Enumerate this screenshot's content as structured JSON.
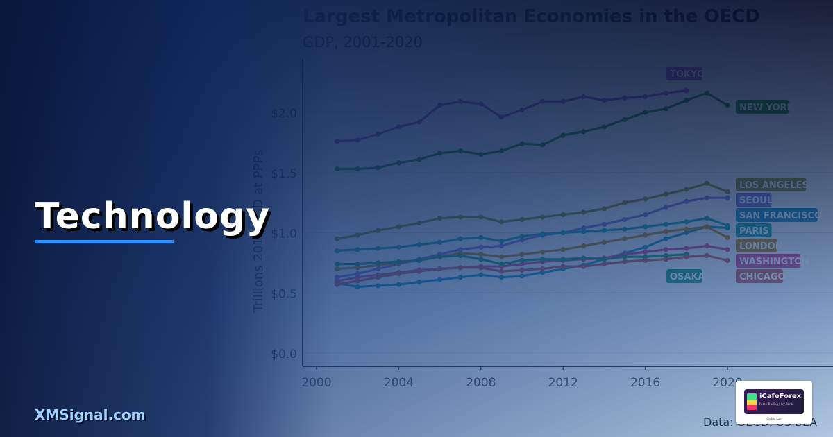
{
  "headline": "Technology",
  "brand": "XMSignal.com",
  "logo": {
    "name": "iCafeForex",
    "tagline": "Forex Trading | Ivy Bank",
    "sub": "Global Lab"
  },
  "colors": {
    "accent": "#2f8fff",
    "brand_text": "#9fd0ff"
  },
  "chart_data": {
    "type": "line",
    "title": "Largest Metropolitan Economies in the OECD",
    "subtitle": "GDP, 2001-2020",
    "ylabel": "Trillions 2015 USD at PPPs",
    "source": "Data: OECD, US BEA",
    "xlim": [
      2000,
      2021
    ],
    "ylim": [
      0,
      2.4
    ],
    "x_ticks": [
      2000,
      2004,
      2008,
      2012,
      2016,
      2020
    ],
    "x_tick_labels": [
      "2000",
      "2004",
      "2008",
      "2012",
      "2016",
      "2020"
    ],
    "y_ticks": [
      0,
      0.5,
      1.0,
      1.5,
      2.0
    ],
    "y_tick_labels": [
      "$0.0",
      "$0.5",
      "$1.0",
      "$1.5",
      "$2.0"
    ],
    "grid": true,
    "series": [
      {
        "name": "TOKYO",
        "color": "#a64ab5",
        "x": [
          2001,
          2002,
          2003,
          2004,
          2005,
          2006,
          2007,
          2008,
          2009,
          2010,
          2011,
          2012,
          2013,
          2014,
          2015,
          2016,
          2017,
          2018
        ],
        "values": [
          1.76,
          1.77,
          1.82,
          1.88,
          1.92,
          2.06,
          2.09,
          2.07,
          1.96,
          2.02,
          2.09,
          2.09,
          2.13,
          2.1,
          2.12,
          2.13,
          2.16,
          2.18
        ]
      },
      {
        "name": "NEW YORK",
        "color": "#1e8c1e",
        "x": [
          2001,
          2002,
          2003,
          2004,
          2005,
          2006,
          2007,
          2008,
          2009,
          2010,
          2011,
          2012,
          2013,
          2014,
          2015,
          2016,
          2017,
          2018,
          2019,
          2020
        ],
        "values": [
          1.53,
          1.53,
          1.54,
          1.58,
          1.61,
          1.66,
          1.68,
          1.65,
          1.68,
          1.74,
          1.73,
          1.81,
          1.84,
          1.88,
          1.94,
          2.0,
          2.03,
          2.1,
          2.16,
          2.06
        ]
      },
      {
        "name": "LOS ANGELES",
        "color": "#8a8a1e",
        "x": [
          2001,
          2002,
          2003,
          2004,
          2005,
          2006,
          2007,
          2008,
          2009,
          2010,
          2011,
          2012,
          2013,
          2014,
          2015,
          2016,
          2017,
          2018,
          2019,
          2020
        ],
        "values": [
          0.95,
          0.98,
          1.02,
          1.05,
          1.08,
          1.12,
          1.13,
          1.13,
          1.09,
          1.11,
          1.13,
          1.15,
          1.17,
          1.2,
          1.25,
          1.28,
          1.32,
          1.36,
          1.41,
          1.34
        ]
      },
      {
        "name": "SEOUL",
        "color": "#7d72d6",
        "x": [
          2001,
          2002,
          2003,
          2004,
          2005,
          2006,
          2007,
          2008,
          2009,
          2010,
          2011,
          2012,
          2013,
          2014,
          2015,
          2016,
          2017,
          2018,
          2019,
          2020
        ],
        "values": [
          0.63,
          0.66,
          0.7,
          0.74,
          0.78,
          0.82,
          0.86,
          0.88,
          0.89,
          0.94,
          0.98,
          1.0,
          1.04,
          1.07,
          1.11,
          1.15,
          1.21,
          1.26,
          1.29,
          1.29
        ]
      },
      {
        "name": "SAN FRANCISCO",
        "color": "#1b8fb8",
        "x": [
          2001,
          2002,
          2003,
          2004,
          2005,
          2006,
          2007,
          2008,
          2009,
          2010,
          2011,
          2012,
          2013,
          2014,
          2015,
          2016,
          2017,
          2018,
          2019,
          2020
        ],
        "values": [
          0.58,
          0.55,
          0.56,
          0.57,
          0.59,
          0.61,
          0.63,
          0.65,
          0.63,
          0.64,
          0.67,
          0.7,
          0.73,
          0.78,
          0.83,
          0.88,
          0.95,
          1.0,
          1.05,
          1.04
        ]
      },
      {
        "name": "PARIS",
        "color": "#18a3a3",
        "x": [
          2001,
          2002,
          2003,
          2004,
          2005,
          2006,
          2007,
          2008,
          2009,
          2010,
          2011,
          2012,
          2013,
          2014,
          2015,
          2016,
          2017,
          2018,
          2019,
          2020
        ],
        "values": [
          0.85,
          0.86,
          0.87,
          0.88,
          0.9,
          0.92,
          0.95,
          0.96,
          0.93,
          0.97,
          0.99,
          1.0,
          1.01,
          1.02,
          1.03,
          1.05,
          1.07,
          1.09,
          1.12,
          1.06
        ]
      },
      {
        "name": "LONDON",
        "color": "#b9821a",
        "x": [
          2001,
          2002,
          2003,
          2004,
          2005,
          2006,
          2007,
          2008,
          2009,
          2010,
          2011,
          2012,
          2013,
          2014,
          2015,
          2016,
          2017,
          2018,
          2019,
          2020
        ],
        "values": [
          0.7,
          0.71,
          0.73,
          0.75,
          0.77,
          0.8,
          0.83,
          0.82,
          0.8,
          0.82,
          0.84,
          0.86,
          0.89,
          0.92,
          0.95,
          0.98,
          1.01,
          1.03,
          1.05,
          0.96
        ]
      },
      {
        "name": "WASHINGTON",
        "color": "#d1498f",
        "x": [
          2001,
          2002,
          2003,
          2004,
          2005,
          2006,
          2007,
          2008,
          2009,
          2010,
          2011,
          2012,
          2013,
          2014,
          2015,
          2016,
          2017,
          2018,
          2019,
          2020
        ],
        "values": [
          0.6,
          0.63,
          0.65,
          0.67,
          0.69,
          0.7,
          0.71,
          0.72,
          0.72,
          0.74,
          0.76,
          0.77,
          0.78,
          0.79,
          0.82,
          0.84,
          0.86,
          0.87,
          0.89,
          0.86
        ]
      },
      {
        "name": "OSAKA",
        "color": "#1f9a6c",
        "x": [
          2001,
          2002,
          2003,
          2004,
          2005,
          2006,
          2007,
          2008,
          2009,
          2010,
          2011,
          2012,
          2013,
          2014,
          2015,
          2016,
          2017,
          2018
        ],
        "values": [
          0.74,
          0.74,
          0.75,
          0.76,
          0.77,
          0.8,
          0.81,
          0.78,
          0.74,
          0.77,
          0.78,
          0.78,
          0.79,
          0.78,
          0.8,
          0.8,
          0.81,
          0.82
        ]
      },
      {
        "name": "CHICAGO",
        "color": "#c85a5a",
        "x": [
          2001,
          2002,
          2003,
          2004,
          2005,
          2006,
          2007,
          2008,
          2009,
          2010,
          2011,
          2012,
          2013,
          2014,
          2015,
          2016,
          2017,
          2018,
          2019,
          2020
        ],
        "values": [
          0.57,
          0.6,
          0.63,
          0.66,
          0.68,
          0.7,
          0.71,
          0.71,
          0.68,
          0.69,
          0.7,
          0.72,
          0.72,
          0.74,
          0.76,
          0.77,
          0.78,
          0.8,
          0.81,
          0.77
        ]
      }
    ]
  }
}
